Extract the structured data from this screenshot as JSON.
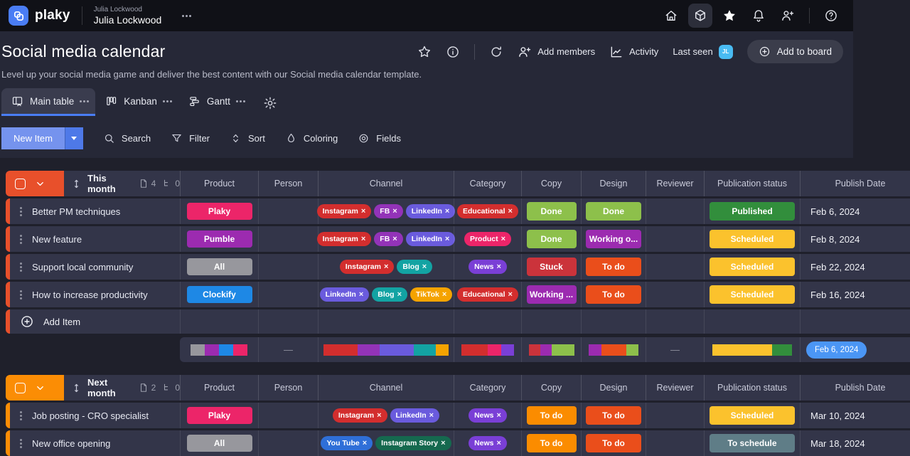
{
  "ui": {
    "remove_x": "×",
    "dash": "—"
  },
  "topbar": {
    "brand": "plaky",
    "workspace_label": "Julia Lockwood",
    "workspace_name": "Julia Lockwood"
  },
  "board": {
    "title": "Social media calendar",
    "subtitle": "Level up your social media game and deliver the best content with our Social media calendar template.",
    "actions": {
      "add_members": "Add members",
      "activity": "Activity",
      "last_seen": "Last seen",
      "avatar_initials": "JL",
      "add_to_board": "Add to board"
    },
    "tabs": [
      {
        "label": "Main table"
      },
      {
        "label": "Kanban"
      },
      {
        "label": "Gantt"
      }
    ],
    "toolbar": {
      "new_item": "New Item",
      "search": "Search",
      "filter": "Filter",
      "sort": "Sort",
      "coloring": "Coloring",
      "fields": "Fields"
    }
  },
  "columns": [
    "Product",
    "Person",
    "Channel",
    "Category",
    "Copy",
    "Design",
    "Reviewer",
    "Publication status",
    "Publish Date"
  ],
  "colors": {
    "accent": "#4A7DF5",
    "group1": "#E8502B",
    "group2": "#FB8D05"
  },
  "groups": [
    {
      "name": "This month",
      "color": "#E8502B",
      "doc_count": "4",
      "sub_count": "0",
      "rows": [
        {
          "name": "Better PM techniques",
          "product": {
            "label": "Plaky",
            "color": "#EC2569"
          },
          "channels": [
            {
              "label": "Instagram",
              "color": "#D32E2E"
            },
            {
              "label": "FB",
              "color": "#9333B8"
            },
            {
              "label": "LinkedIn",
              "color": "#6A5BDD"
            }
          ],
          "category": {
            "label": "Educational",
            "color": "#D32E2E"
          },
          "copy": {
            "label": "Done",
            "color": "#8DC04B"
          },
          "design": {
            "label": "Done",
            "color": "#8DC04B"
          },
          "status": {
            "label": "Published",
            "color": "#328E3C"
          },
          "date": "Feb 6, 2024"
        },
        {
          "name": "New feature",
          "product": {
            "label": "Pumble",
            "color": "#9C2BB0"
          },
          "channels": [
            {
              "label": "Instagram",
              "color": "#D32E2E"
            },
            {
              "label": "FB",
              "color": "#9333B8"
            },
            {
              "label": "LinkedIn",
              "color": "#6A5BDD"
            }
          ],
          "category": {
            "label": "Product",
            "color": "#EC2569"
          },
          "copy": {
            "label": "Done",
            "color": "#8DC04B"
          },
          "design": {
            "label": "Working o...",
            "color": "#9C2BB0"
          },
          "status": {
            "label": "Scheduled",
            "color": "#FBC22D"
          },
          "date": "Feb 8, 2024"
        },
        {
          "name": "Support local community",
          "product": {
            "label": "All",
            "color": "#97979D"
          },
          "channels": [
            {
              "label": "Instagram",
              "color": "#D32E2E"
            },
            {
              "label": "Blog",
              "color": "#13A3A3"
            }
          ],
          "category": {
            "label": "News",
            "color": "#7A3FD6"
          },
          "copy": {
            "label": "Stuck",
            "color": "#CB333B"
          },
          "design": {
            "label": "To do",
            "color": "#EA4E1B"
          },
          "status": {
            "label": "Scheduled",
            "color": "#FBC22D"
          },
          "date": "Feb 22, 2024"
        },
        {
          "name": "How to increase productivity",
          "product": {
            "label": "Clockify",
            "color": "#1E88E5"
          },
          "channels": [
            {
              "label": "LinkedIn",
              "color": "#6A5BDD"
            },
            {
              "label": "Blog",
              "color": "#13A3A3"
            },
            {
              "label": "TikTok",
              "color": "#F5A300"
            }
          ],
          "category": {
            "label": "Educational",
            "color": "#D32E2E"
          },
          "copy": {
            "label": "Working ...",
            "color": "#9C2BB0"
          },
          "design": {
            "label": "To do",
            "color": "#EA4E1B"
          },
          "status": {
            "label": "Scheduled",
            "color": "#FBC22D"
          },
          "date": "Feb 16, 2024"
        }
      ],
      "add_item": "Add Item",
      "summary": {
        "product": [
          {
            "color": "#97979D",
            "pct": 25
          },
          {
            "color": "#9C2BB0",
            "pct": 25
          },
          {
            "color": "#1E88E5",
            "pct": 25
          },
          {
            "color": "#EC2569",
            "pct": 25
          }
        ],
        "person": "—",
        "channel": [
          {
            "color": "#D32E2E",
            "pct": 27
          },
          {
            "color": "#9333B8",
            "pct": 18
          },
          {
            "color": "#6A5BDD",
            "pct": 27
          },
          {
            "color": "#13A3A3",
            "pct": 18
          },
          {
            "color": "#F5A300",
            "pct": 10
          }
        ],
        "category": [
          {
            "color": "#D32E2E",
            "pct": 50
          },
          {
            "color": "#EC2569",
            "pct": 25
          },
          {
            "color": "#7A3FD6",
            "pct": 25
          }
        ],
        "copy": [
          {
            "color": "#CB333B",
            "pct": 25
          },
          {
            "color": "#9C2BB0",
            "pct": 25
          },
          {
            "color": "#8DC04B",
            "pct": 50
          }
        ],
        "design": [
          {
            "color": "#9C2BB0",
            "pct": 25
          },
          {
            "color": "#EA4E1B",
            "pct": 50
          },
          {
            "color": "#8DC04B",
            "pct": 25
          }
        ],
        "reviewer": "—",
        "status": [
          {
            "color": "#FBC22D",
            "pct": 75
          },
          {
            "color": "#328E3C",
            "pct": 25
          }
        ],
        "date_badge": {
          "label": "Feb 6, 2024",
          "color": "#4B96F5"
        }
      }
    },
    {
      "name": "Next month",
      "color": "#FB8D05",
      "doc_count": "2",
      "sub_count": "0",
      "rows": [
        {
          "name": "Job posting - CRO specialist",
          "product": {
            "label": "Plaky",
            "color": "#EC2569"
          },
          "channels": [
            {
              "label": "Instagram",
              "color": "#D32E2E"
            },
            {
              "label": "LinkedIn",
              "color": "#6A5BDD"
            }
          ],
          "category": {
            "label": "News",
            "color": "#7A3FD6"
          },
          "copy": {
            "label": "To do",
            "color": "#FB8C00"
          },
          "design": {
            "label": "To do",
            "color": "#EA4E1B"
          },
          "status": {
            "label": "Scheduled",
            "color": "#FBC22D"
          },
          "date": "Mar 10, 2024"
        },
        {
          "name": "New office opening",
          "product": {
            "label": "All",
            "color": "#97979D"
          },
          "channels": [
            {
              "label": "You Tube",
              "color": "#2F6FD8"
            },
            {
              "label": "Instagram Story",
              "color": "#15694F"
            }
          ],
          "category": {
            "label": "News",
            "color": "#7A3FD6"
          },
          "copy": {
            "label": "To do",
            "color": "#FB8C00"
          },
          "design": {
            "label": "To do",
            "color": "#EA4E1B"
          },
          "status": {
            "label": "To schedule",
            "color": "#5F7D87"
          },
          "date": "Mar 18, 2024"
        }
      ]
    }
  ]
}
